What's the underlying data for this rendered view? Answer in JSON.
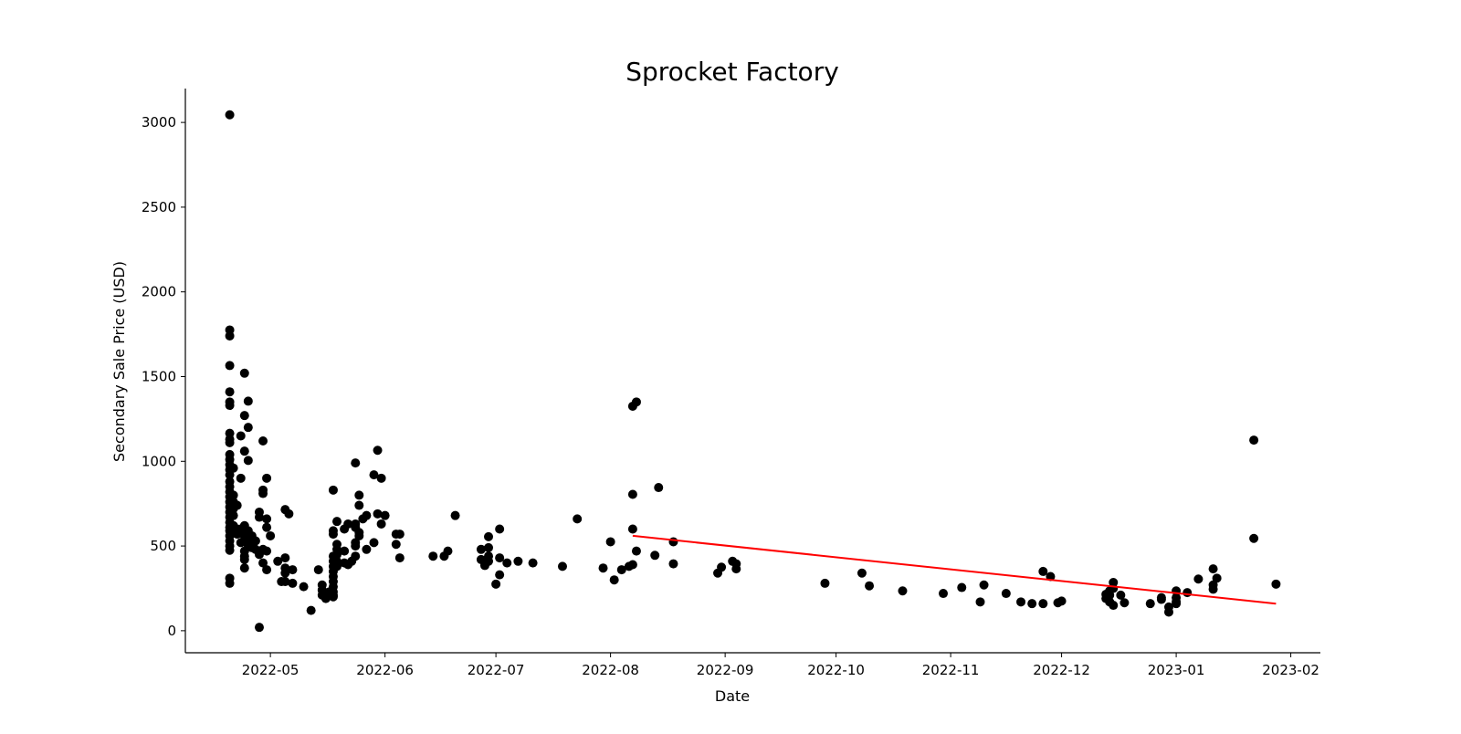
{
  "chart_data": {
    "type": "scatter",
    "title": "Sprocket Factory",
    "xlabel": "Date",
    "ylabel": "Secondary Sale Price (USD)",
    "x_axis_type": "date",
    "xlim": [
      "2022-04-08",
      "2023-02-09"
    ],
    "ylim": [
      -130,
      3200
    ],
    "x_ticks": [
      "2022-05-01",
      "2022-06-01",
      "2022-07-01",
      "2022-08-01",
      "2022-09-01",
      "2022-10-01",
      "2022-11-01",
      "2022-12-01",
      "2023-01-01",
      "2023-02-01"
    ],
    "x_tick_labels": [
      "2022-05",
      "2022-06",
      "2022-07",
      "2022-08",
      "2022-09",
      "2022-10",
      "2022-11",
      "2022-12",
      "2023-01",
      "2023-02"
    ],
    "y_ticks": [
      0,
      500,
      1000,
      1500,
      2000,
      2500,
      3000
    ],
    "y_tick_labels": [
      "0",
      "500",
      "1000",
      "1500",
      "2000",
      "2500",
      "3000"
    ],
    "grid": false,
    "colors": {
      "points": "#000000",
      "trend": "#ff0000",
      "axes": "#000000",
      "background": "#ffffff"
    },
    "series": [
      {
        "type": "scatter",
        "points": [
          [
            "2022-04-20",
            3045
          ],
          [
            "2022-04-20",
            1775
          ],
          [
            "2022-04-20",
            1740
          ],
          [
            "2022-04-20",
            1565
          ],
          [
            "2022-04-20",
            1410
          ],
          [
            "2022-04-20",
            1350
          ],
          [
            "2022-04-20",
            1330
          ],
          [
            "2022-04-20",
            1165
          ],
          [
            "2022-04-20",
            1130
          ],
          [
            "2022-04-20",
            1110
          ],
          [
            "2022-04-20",
            1040
          ],
          [
            "2022-04-20",
            1010
          ],
          [
            "2022-04-20",
            980
          ],
          [
            "2022-04-20",
            950
          ],
          [
            "2022-04-20",
            920
          ],
          [
            "2022-04-20",
            880
          ],
          [
            "2022-04-20",
            850
          ],
          [
            "2022-04-20",
            820
          ],
          [
            "2022-04-20",
            790
          ],
          [
            "2022-04-20",
            760
          ],
          [
            "2022-04-20",
            730
          ],
          [
            "2022-04-20",
            700
          ],
          [
            "2022-04-20",
            670
          ],
          [
            "2022-04-20",
            640
          ],
          [
            "2022-04-20",
            610
          ],
          [
            "2022-04-20",
            590
          ],
          [
            "2022-04-20",
            560
          ],
          [
            "2022-04-20",
            530
          ],
          [
            "2022-04-20",
            500
          ],
          [
            "2022-04-20",
            475
          ],
          [
            "2022-04-20",
            310
          ],
          [
            "2022-04-20",
            280
          ],
          [
            "2022-04-21",
            960
          ],
          [
            "2022-04-21",
            800
          ],
          [
            "2022-04-21",
            760
          ],
          [
            "2022-04-21",
            720
          ],
          [
            "2022-04-21",
            680
          ],
          [
            "2022-04-21",
            620
          ],
          [
            "2022-04-21",
            580
          ],
          [
            "2022-04-22",
            740
          ],
          [
            "2022-04-22",
            600
          ],
          [
            "2022-04-22",
            570
          ],
          [
            "2022-04-23",
            1150
          ],
          [
            "2022-04-23",
            900
          ],
          [
            "2022-04-23",
            600
          ],
          [
            "2022-04-23",
            520
          ],
          [
            "2022-04-24",
            1520
          ],
          [
            "2022-04-24",
            1270
          ],
          [
            "2022-04-24",
            1060
          ],
          [
            "2022-04-24",
            620
          ],
          [
            "2022-04-24",
            560
          ],
          [
            "2022-04-24",
            470
          ],
          [
            "2022-04-24",
            440
          ],
          [
            "2022-04-24",
            420
          ],
          [
            "2022-04-24",
            370
          ],
          [
            "2022-04-25",
            1355
          ],
          [
            "2022-04-25",
            1200
          ],
          [
            "2022-04-25",
            1005
          ],
          [
            "2022-04-25",
            590
          ],
          [
            "2022-04-25",
            540
          ],
          [
            "2022-04-25",
            505
          ],
          [
            "2022-04-26",
            560
          ],
          [
            "2022-04-26",
            520
          ],
          [
            "2022-04-26",
            490
          ],
          [
            "2022-04-27",
            530
          ],
          [
            "2022-04-27",
            480
          ],
          [
            "2022-04-28",
            20
          ],
          [
            "2022-04-28",
            700
          ],
          [
            "2022-04-28",
            670
          ],
          [
            "2022-04-28",
            450
          ],
          [
            "2022-04-29",
            1120
          ],
          [
            "2022-04-29",
            830
          ],
          [
            "2022-04-29",
            810
          ],
          [
            "2022-04-29",
            480
          ],
          [
            "2022-04-29",
            400
          ],
          [
            "2022-04-30",
            900
          ],
          [
            "2022-04-30",
            660
          ],
          [
            "2022-04-30",
            610
          ],
          [
            "2022-04-30",
            470
          ],
          [
            "2022-04-30",
            360
          ],
          [
            "2022-05-01",
            560
          ],
          [
            "2022-05-03",
            410
          ],
          [
            "2022-05-04",
            290
          ],
          [
            "2022-05-05",
            715
          ],
          [
            "2022-05-05",
            430
          ],
          [
            "2022-05-05",
            370
          ],
          [
            "2022-05-05",
            340
          ],
          [
            "2022-05-05",
            290
          ],
          [
            "2022-05-06",
            690
          ],
          [
            "2022-05-07",
            360
          ],
          [
            "2022-05-07",
            280
          ],
          [
            "2022-05-10",
            260
          ],
          [
            "2022-05-12",
            120
          ],
          [
            "2022-05-14",
            360
          ],
          [
            "2022-05-15",
            270
          ],
          [
            "2022-05-15",
            240
          ],
          [
            "2022-05-15",
            210
          ],
          [
            "2022-05-16",
            190
          ],
          [
            "2022-05-17",
            230
          ],
          [
            "2022-05-18",
            830
          ],
          [
            "2022-05-18",
            590
          ],
          [
            "2022-05-18",
            570
          ],
          [
            "2022-05-18",
            440
          ],
          [
            "2022-05-18",
            410
          ],
          [
            "2022-05-18",
            380
          ],
          [
            "2022-05-18",
            350
          ],
          [
            "2022-05-18",
            320
          ],
          [
            "2022-05-18",
            290
          ],
          [
            "2022-05-18",
            260
          ],
          [
            "2022-05-18",
            230
          ],
          [
            "2022-05-18",
            210
          ],
          [
            "2022-05-18",
            200
          ],
          [
            "2022-05-19",
            645
          ],
          [
            "2022-05-19",
            510
          ],
          [
            "2022-05-19",
            480
          ],
          [
            "2022-05-19",
            450
          ],
          [
            "2022-05-19",
            410
          ],
          [
            "2022-05-19",
            380
          ],
          [
            "2022-05-21",
            600
          ],
          [
            "2022-05-21",
            470
          ],
          [
            "2022-05-21",
            400
          ],
          [
            "2022-05-22",
            630
          ],
          [
            "2022-05-22",
            390
          ],
          [
            "2022-05-23",
            410
          ],
          [
            "2022-05-24",
            990
          ],
          [
            "2022-05-24",
            630
          ],
          [
            "2022-05-24",
            610
          ],
          [
            "2022-05-24",
            520
          ],
          [
            "2022-05-24",
            500
          ],
          [
            "2022-05-24",
            440
          ],
          [
            "2022-05-25",
            800
          ],
          [
            "2022-05-25",
            740
          ],
          [
            "2022-05-25",
            580
          ],
          [
            "2022-05-25",
            560
          ],
          [
            "2022-05-26",
            660
          ],
          [
            "2022-05-27",
            680
          ],
          [
            "2022-05-27",
            480
          ],
          [
            "2022-05-29",
            920
          ],
          [
            "2022-05-29",
            520
          ],
          [
            "2022-05-30",
            1065
          ],
          [
            "2022-05-30",
            690
          ],
          [
            "2022-05-31",
            900
          ],
          [
            "2022-05-31",
            630
          ],
          [
            "2022-06-01",
            680
          ],
          [
            "2022-06-04",
            570
          ],
          [
            "2022-06-04",
            510
          ],
          [
            "2022-06-05",
            570
          ],
          [
            "2022-06-05",
            430
          ],
          [
            "2022-06-14",
            440
          ],
          [
            "2022-06-17",
            440
          ],
          [
            "2022-06-18",
            470
          ],
          [
            "2022-06-20",
            680
          ],
          [
            "2022-06-27",
            480
          ],
          [
            "2022-06-27",
            420
          ],
          [
            "2022-06-28",
            400
          ],
          [
            "2022-06-28",
            385
          ],
          [
            "2022-06-29",
            555
          ],
          [
            "2022-06-29",
            490
          ],
          [
            "2022-06-29",
            440
          ],
          [
            "2022-06-29",
            410
          ],
          [
            "2022-07-01",
            275
          ],
          [
            "2022-07-02",
            600
          ],
          [
            "2022-07-02",
            430
          ],
          [
            "2022-07-02",
            330
          ],
          [
            "2022-07-04",
            400
          ],
          [
            "2022-07-07",
            410
          ],
          [
            "2022-07-11",
            400
          ],
          [
            "2022-07-19",
            380
          ],
          [
            "2022-07-23",
            660
          ],
          [
            "2022-07-30",
            370
          ],
          [
            "2022-08-01",
            525
          ],
          [
            "2022-08-02",
            300
          ],
          [
            "2022-08-04",
            360
          ],
          [
            "2022-08-06",
            380
          ],
          [
            "2022-08-07",
            1325
          ],
          [
            "2022-08-07",
            805
          ],
          [
            "2022-08-07",
            600
          ],
          [
            "2022-08-07",
            390
          ],
          [
            "2022-08-08",
            1350
          ],
          [
            "2022-08-08",
            470
          ],
          [
            "2022-08-13",
            445
          ],
          [
            "2022-08-14",
            845
          ],
          [
            "2022-08-18",
            525
          ],
          [
            "2022-08-18",
            395
          ],
          [
            "2022-08-30",
            340
          ],
          [
            "2022-08-31",
            375
          ],
          [
            "2022-09-03",
            410
          ],
          [
            "2022-09-04",
            395
          ],
          [
            "2022-09-04",
            365
          ],
          [
            "2022-09-28",
            280
          ],
          [
            "2022-10-08",
            340
          ],
          [
            "2022-10-10",
            265
          ],
          [
            "2022-10-19",
            235
          ],
          [
            "2022-10-30",
            220
          ],
          [
            "2022-11-04",
            255
          ],
          [
            "2022-11-09",
            170
          ],
          [
            "2022-11-10",
            270
          ],
          [
            "2022-11-16",
            220
          ],
          [
            "2022-11-20",
            170
          ],
          [
            "2022-11-23",
            160
          ],
          [
            "2022-11-26",
            350
          ],
          [
            "2022-11-26",
            160
          ],
          [
            "2022-11-28",
            320
          ],
          [
            "2022-11-30",
            165
          ],
          [
            "2022-12-01",
            175
          ],
          [
            "2022-12-13",
            215
          ],
          [
            "2022-12-13",
            190
          ],
          [
            "2022-12-14",
            235
          ],
          [
            "2022-12-14",
            210
          ],
          [
            "2022-12-14",
            170
          ],
          [
            "2022-12-15",
            285
          ],
          [
            "2022-12-15",
            250
          ],
          [
            "2022-12-15",
            150
          ],
          [
            "2022-12-17",
            210
          ],
          [
            "2022-12-18",
            165
          ],
          [
            "2022-12-25",
            160
          ],
          [
            "2022-12-28",
            195
          ],
          [
            "2022-12-28",
            185
          ],
          [
            "2022-12-30",
            140
          ],
          [
            "2022-12-30",
            110
          ],
          [
            "2023-01-01",
            235
          ],
          [
            "2023-01-01",
            195
          ],
          [
            "2023-01-01",
            170
          ],
          [
            "2023-01-01",
            160
          ],
          [
            "2023-01-04",
            225
          ],
          [
            "2023-01-07",
            305
          ],
          [
            "2023-01-11",
            365
          ],
          [
            "2023-01-11",
            270
          ],
          [
            "2023-01-11",
            245
          ],
          [
            "2023-01-12",
            310
          ],
          [
            "2023-01-22",
            1125
          ],
          [
            "2023-01-22",
            545
          ],
          [
            "2023-01-28",
            275
          ]
        ]
      },
      {
        "type": "line",
        "points": [
          [
            "2022-08-07",
            560
          ],
          [
            "2023-01-28",
            160
          ]
        ]
      }
    ]
  }
}
